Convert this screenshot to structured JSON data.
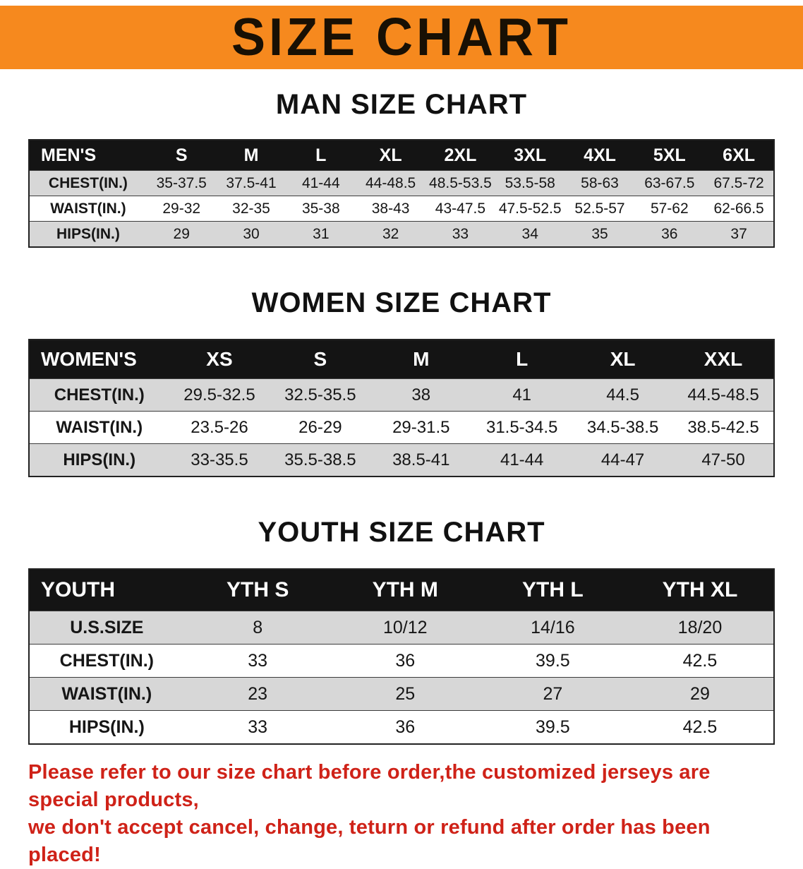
{
  "banner": {
    "title": "SIZE CHART",
    "background_color": "#f6891e",
    "text_color": "#181004"
  },
  "sections": [
    {
      "id": "men",
      "title": "MAN SIZE CHART",
      "header": [
        "MEN'S",
        "S",
        "M",
        "L",
        "XL",
        "2XL",
        "3XL",
        "4XL",
        "5XL",
        "6XL"
      ],
      "rows": [
        [
          "CHEST(IN.)",
          "35-37.5",
          "37.5-41",
          "41-44",
          "44-48.5",
          "48.5-53.5",
          "53.5-58",
          "58-63",
          "63-67.5",
          "67.5-72"
        ],
        [
          "WAIST(IN.)",
          "29-32",
          "32-35",
          "35-38",
          "38-43",
          "43-47.5",
          "47.5-52.5",
          "52.5-57",
          "57-62",
          "62-66.5"
        ],
        [
          "HIPS(IN.)",
          "29",
          "30",
          "31",
          "32",
          "33",
          "34",
          "35",
          "36",
          "37"
        ]
      ]
    },
    {
      "id": "women",
      "title": "WOMEN SIZE CHART",
      "header": [
        "WOMEN'S",
        "XS",
        "S",
        "M",
        "L",
        "XL",
        "XXL"
      ],
      "rows": [
        [
          "CHEST(IN.)",
          "29.5-32.5",
          "32.5-35.5",
          "38",
          "41",
          "44.5",
          "44.5-48.5"
        ],
        [
          "WAIST(IN.)",
          "23.5-26",
          "26-29",
          "29-31.5",
          "31.5-34.5",
          "34.5-38.5",
          "38.5-42.5"
        ],
        [
          "HIPS(IN.)",
          "33-35.5",
          "35.5-38.5",
          "38.5-41",
          "41-44",
          "44-47",
          "47-50"
        ]
      ]
    },
    {
      "id": "youth",
      "title": "YOUTH SIZE CHART",
      "header": [
        "YOUTH",
        "YTH S",
        "YTH M",
        "YTH L",
        "YTH XL"
      ],
      "rows": [
        [
          "U.S.SIZE",
          "8",
          "10/12",
          "14/16",
          "18/20"
        ],
        [
          "CHEST(IN.)",
          "33",
          "36",
          "39.5",
          "42.5"
        ],
        [
          "WAIST(IN.)",
          "23",
          "25",
          "27",
          "29"
        ],
        [
          "HIPS(IN.)",
          "33",
          "36",
          "39.5",
          "42.5"
        ]
      ]
    }
  ],
  "disclaimer": {
    "color": "#cf2218",
    "lines": [
      "Please refer to our size chart before order,the customized jerseys are special products,",
      "we don't accept cancel, change, teturn or refund after order has been placed!"
    ]
  }
}
